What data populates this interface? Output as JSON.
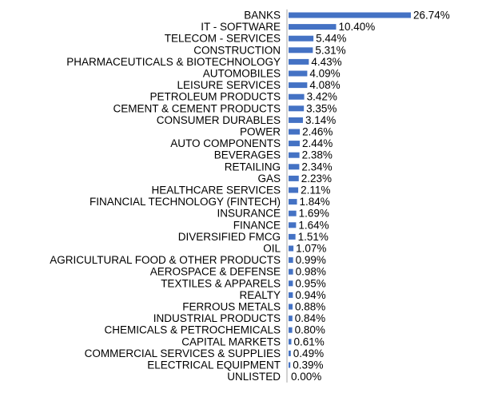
{
  "chart_data": {
    "type": "bar",
    "orientation": "horizontal",
    "categories": [
      "BANKS",
      "IT - SOFTWARE",
      "TELECOM - SERVICES",
      "CONSTRUCTION",
      "PHARMACEUTICALS & BIOTECHNOLOGY",
      "AUTOMOBILES",
      "LEISURE SERVICES",
      "PETROLEUM PRODUCTS",
      "CEMENT & CEMENT PRODUCTS",
      "CONSUMER DURABLES",
      "POWER",
      "AUTO COMPONENTS",
      "BEVERAGES",
      "RETAILING",
      "GAS",
      "HEALTHCARE SERVICES",
      "FINANCIAL TECHNOLOGY (FINTECH)",
      "INSURANCE",
      "FINANCE",
      "DIVERSIFIED FMCG",
      "OIL",
      "AGRICULTURAL FOOD & OTHER PRODUCTS",
      "AEROSPACE & DEFENSE",
      "TEXTILES & APPARELS",
      "REALTY",
      "FERROUS METALS",
      "INDUSTRIAL PRODUCTS",
      "CHEMICALS & PETROCHEMICALS",
      "CAPITAL MARKETS",
      "COMMERCIAL SERVICES & SUPPLIES",
      "ELECTRICAL EQUIPMENT",
      "UNLISTED"
    ],
    "values": [
      26.74,
      10.4,
      5.44,
      5.31,
      4.43,
      4.09,
      4.08,
      3.42,
      3.35,
      3.14,
      2.46,
      2.44,
      2.38,
      2.34,
      2.23,
      2.11,
      1.84,
      1.69,
      1.64,
      1.51,
      1.07,
      0.99,
      0.98,
      0.95,
      0.94,
      0.88,
      0.84,
      0.8,
      0.61,
      0.49,
      0.39,
      0.0
    ],
    "data_labels": [
      "26.74%",
      "10.40%",
      "5.44%",
      "5.31%",
      "4.43%",
      "4.09%",
      "4.08%",
      "3.42%",
      "3.35%",
      "3.14%",
      "2.46%",
      "2.44%",
      "2.38%",
      "2.34%",
      "2.23%",
      "2.11%",
      "1.84%",
      "1.69%",
      "1.64%",
      "1.51%",
      "1.07%",
      "0.99%",
      "0.98%",
      "0.95%",
      "0.94%",
      "0.88%",
      "0.84%",
      "0.80%",
      "0.61%",
      "0.49%",
      "0.39%",
      "0.00%"
    ],
    "xlim": [
      0,
      26.74
    ],
    "bar_color": "#4472C4",
    "axis_color": "#A6A6A6",
    "grid": false,
    "legend": "none"
  }
}
